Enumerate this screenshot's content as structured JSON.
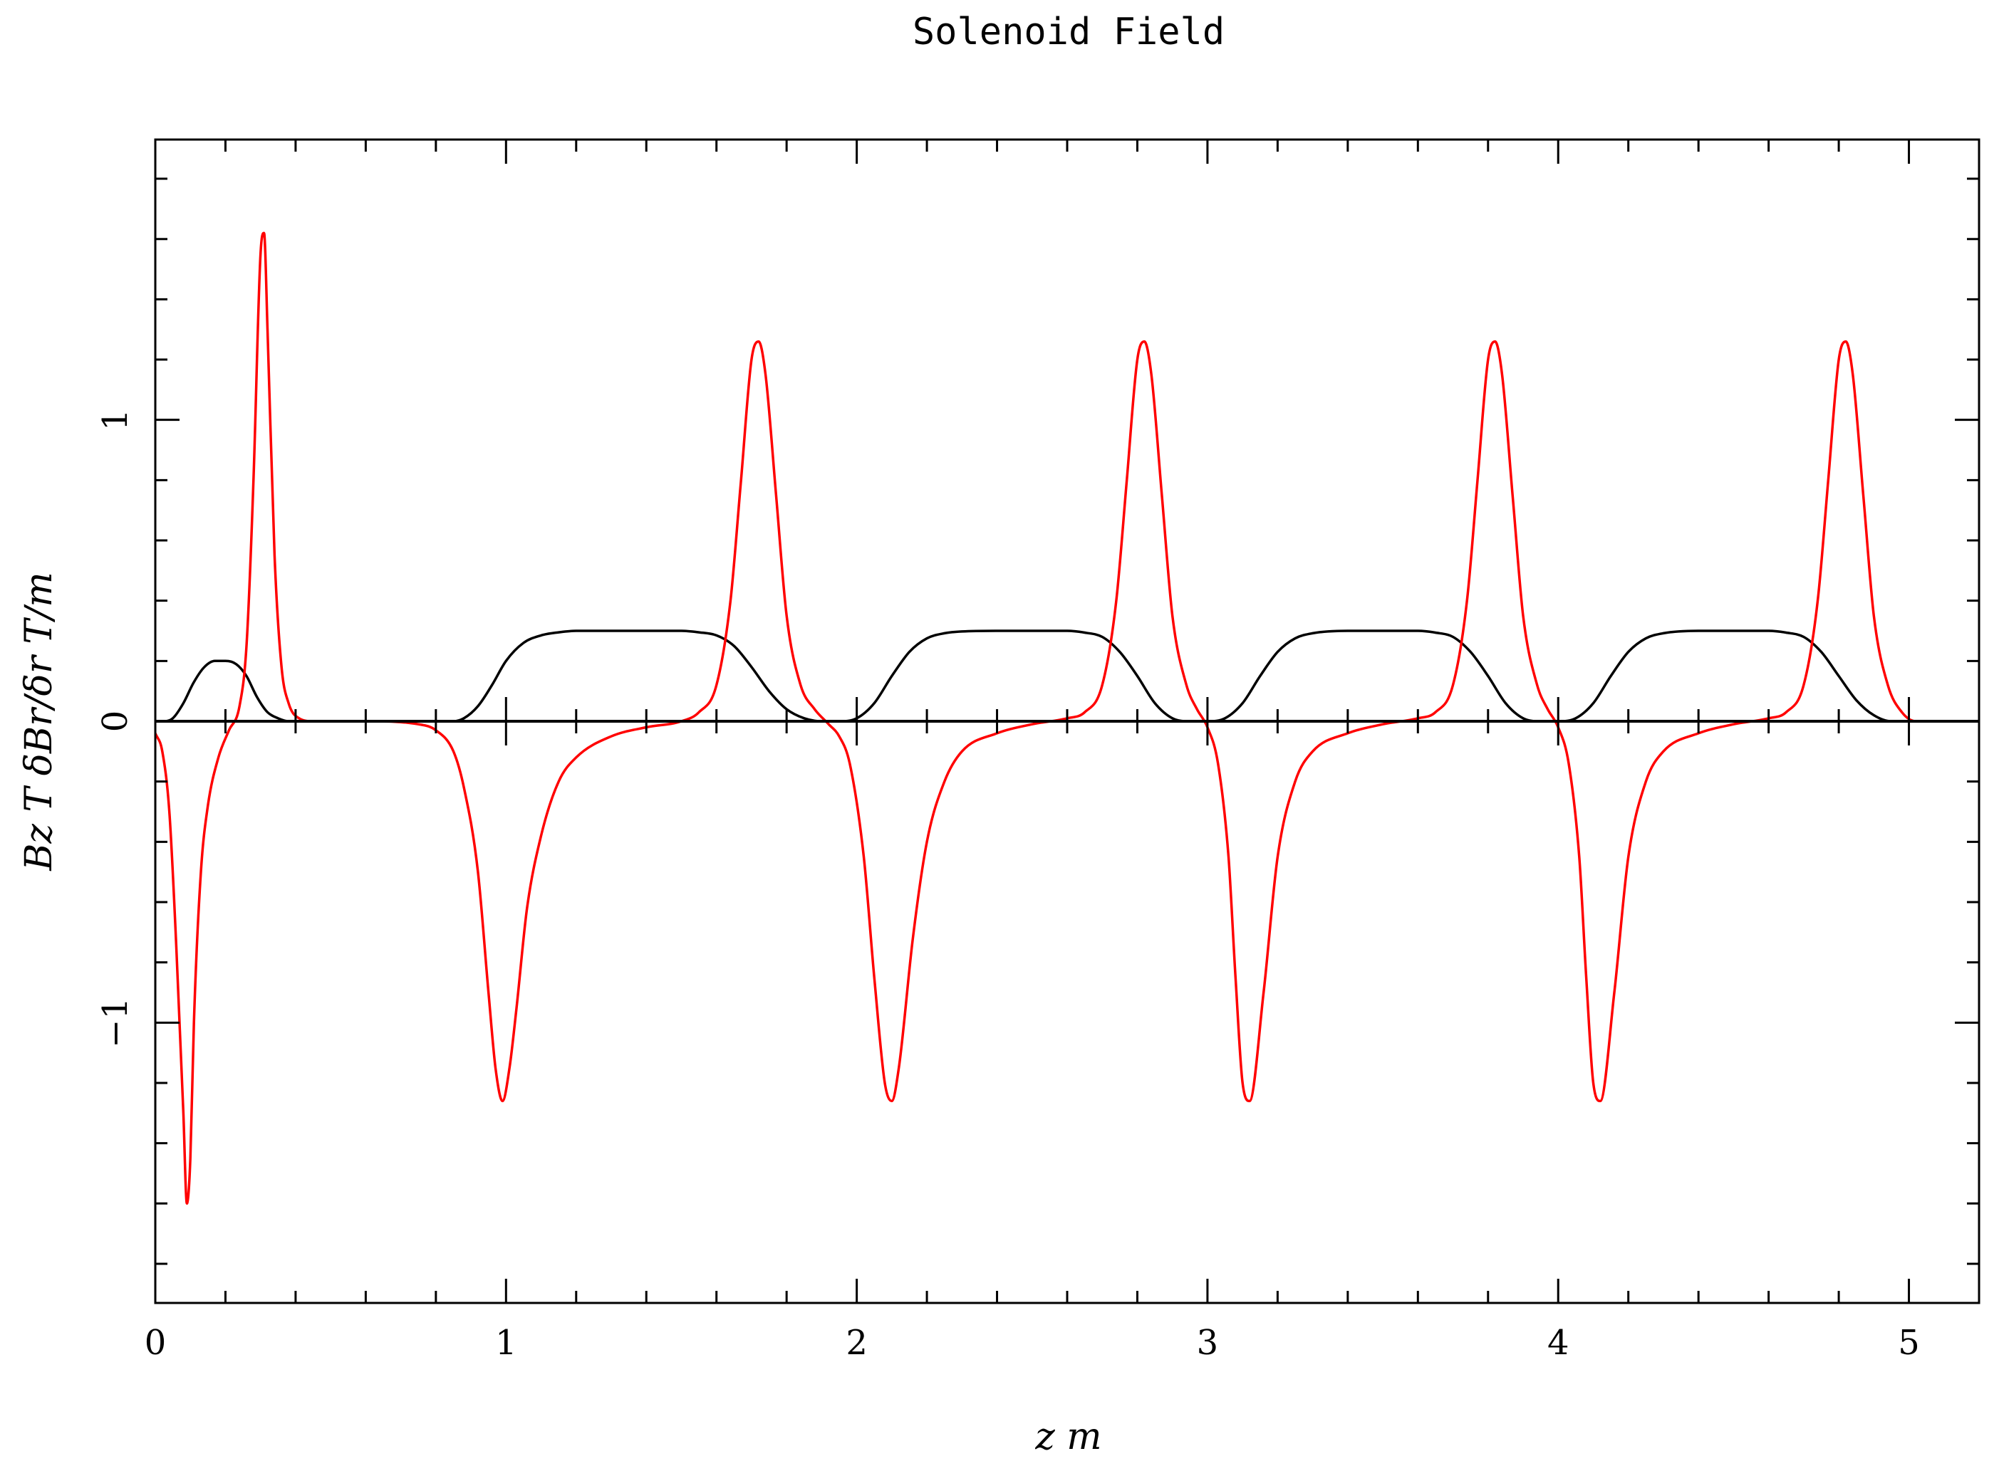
{
  "chart_data": {
    "type": "line",
    "title": "Solenoid Field",
    "xlabel": "z m",
    "ylabel": "Bz T  δBr/δr T/m",
    "xlim": [
      0,
      5.2
    ],
    "ylim": [
      -1.93,
      1.93
    ],
    "grid": false,
    "x_ticks": [
      "0",
      "1",
      "2",
      "3",
      "4",
      "5"
    ],
    "y_ticks": [
      "−1",
      "0",
      "1"
    ],
    "colors": {
      "Bz": "#000000",
      "dBr_dr": "#ff0000",
      "axes": "#000000"
    },
    "series": [
      {
        "color": "#000000",
        "x": [
          0.0,
          0.02,
          0.05,
          0.08,
          0.11,
          0.14,
          0.17,
          0.2,
          0.23,
          0.26,
          0.29,
          0.32,
          0.35,
          0.38,
          0.41,
          0.45,
          0.85,
          0.88,
          0.92,
          0.96,
          1.0,
          1.05,
          1.1,
          1.15,
          1.2,
          1.3,
          1.5,
          1.55,
          1.6,
          1.65,
          1.7,
          1.75,
          1.8,
          1.85,
          1.9,
          1.95,
          2.0,
          2.05,
          2.1,
          2.15,
          2.2,
          2.25,
          2.3,
          2.4,
          2.6,
          2.65,
          2.7,
          2.75,
          2.8,
          2.85,
          2.9,
          2.95,
          3.0,
          3.05,
          3.1,
          3.15,
          3.2,
          3.25,
          3.3,
          3.4,
          3.6,
          3.65,
          3.7,
          3.75,
          3.8,
          3.85,
          3.9,
          3.95,
          4.0,
          4.05,
          4.1,
          4.15,
          4.2,
          4.25,
          4.3,
          4.4,
          4.6,
          4.65,
          4.7,
          4.75,
          4.8,
          4.85,
          4.9,
          4.95,
          5.0,
          5.2
        ],
        "y": [
          0.0,
          0.0,
          0.01,
          0.06,
          0.13,
          0.18,
          0.2,
          0.2,
          0.19,
          0.15,
          0.08,
          0.03,
          0.01,
          0.0,
          0.0,
          0.0,
          0.0,
          0.01,
          0.05,
          0.12,
          0.2,
          0.26,
          0.285,
          0.295,
          0.3,
          0.3,
          0.3,
          0.295,
          0.285,
          0.25,
          0.18,
          0.1,
          0.04,
          0.01,
          0.0,
          0.0,
          0.01,
          0.06,
          0.15,
          0.23,
          0.275,
          0.292,
          0.298,
          0.3,
          0.3,
          0.294,
          0.28,
          0.23,
          0.15,
          0.06,
          0.01,
          0.0,
          0.0,
          0.01,
          0.06,
          0.15,
          0.23,
          0.275,
          0.292,
          0.3,
          0.3,
          0.294,
          0.28,
          0.23,
          0.15,
          0.06,
          0.01,
          0.0,
          0.0,
          0.01,
          0.06,
          0.15,
          0.23,
          0.275,
          0.292,
          0.3,
          0.3,
          0.294,
          0.28,
          0.23,
          0.15,
          0.07,
          0.02,
          0.0,
          0.0,
          0.0
        ]
      },
      {
        "color": "#ff0000",
        "x": [
          0.0,
          0.02,
          0.04,
          0.06,
          0.08,
          0.09,
          0.1,
          0.11,
          0.13,
          0.15,
          0.18,
          0.21,
          0.24,
          0.26,
          0.28,
          0.3,
          0.31,
          0.32,
          0.34,
          0.36,
          0.38,
          0.41,
          0.45,
          0.6,
          0.75,
          0.8,
          0.85,
          0.88,
          0.92,
          0.95,
          0.97,
          0.99,
          1.01,
          1.03,
          1.06,
          1.1,
          1.15,
          1.2,
          1.3,
          1.4,
          1.5,
          1.55,
          1.6,
          1.64,
          1.67,
          1.7,
          1.72,
          1.74,
          1.77,
          1.8,
          1.84,
          1.88,
          1.92,
          1.95,
          1.98,
          2.02,
          2.05,
          2.08,
          2.1,
          2.12,
          2.16,
          2.2,
          2.25,
          2.3,
          2.4,
          2.5,
          2.6,
          2.65,
          2.7,
          2.74,
          2.77,
          2.8,
          2.82,
          2.84,
          2.87,
          2.9,
          2.94,
          2.97,
          3.0,
          3.03,
          3.06,
          3.08,
          3.1,
          3.12,
          3.16,
          3.2,
          3.25,
          3.3,
          3.4,
          3.5,
          3.6,
          3.65,
          3.7,
          3.74,
          3.77,
          3.8,
          3.82,
          3.84,
          3.87,
          3.9,
          3.94,
          3.97,
          4.0,
          4.03,
          4.06,
          4.08,
          4.1,
          4.12,
          4.16,
          4.2,
          4.25,
          4.3,
          4.4,
          4.5,
          4.6,
          4.65,
          4.7,
          4.74,
          4.77,
          4.8,
          4.82,
          4.84,
          4.87,
          4.9,
          4.94,
          4.98,
          5.02,
          5.2
        ],
        "y": [
          -0.04,
          -0.1,
          -0.3,
          -0.75,
          -1.3,
          -1.6,
          -1.45,
          -1.0,
          -0.5,
          -0.28,
          -0.12,
          -0.03,
          0.05,
          0.25,
          0.8,
          1.55,
          1.62,
          1.3,
          0.55,
          0.18,
          0.06,
          0.01,
          0.0,
          0.0,
          -0.01,
          -0.03,
          -0.1,
          -0.22,
          -0.5,
          -0.9,
          -1.15,
          -1.26,
          -1.15,
          -0.95,
          -0.62,
          -0.38,
          -0.2,
          -0.12,
          -0.05,
          -0.02,
          0.0,
          0.03,
          0.12,
          0.4,
          0.8,
          1.2,
          1.26,
          1.15,
          0.75,
          0.35,
          0.12,
          0.04,
          -0.01,
          -0.05,
          -0.14,
          -0.45,
          -0.85,
          -1.2,
          -1.26,
          -1.15,
          -0.72,
          -0.4,
          -0.2,
          -0.1,
          -0.04,
          -0.01,
          0.01,
          0.03,
          0.12,
          0.4,
          0.8,
          1.2,
          1.26,
          1.15,
          0.75,
          0.35,
          0.12,
          0.04,
          -0.02,
          -0.14,
          -0.45,
          -0.85,
          -1.2,
          -1.26,
          -0.9,
          -0.45,
          -0.2,
          -0.1,
          -0.04,
          -0.01,
          0.01,
          0.03,
          0.12,
          0.4,
          0.8,
          1.2,
          1.26,
          1.15,
          0.75,
          0.35,
          0.12,
          0.04,
          -0.02,
          -0.14,
          -0.45,
          -0.85,
          -1.2,
          -1.26,
          -0.9,
          -0.45,
          -0.2,
          -0.1,
          -0.04,
          -0.01,
          0.01,
          0.03,
          0.12,
          0.4,
          0.8,
          1.2,
          1.26,
          1.15,
          0.75,
          0.35,
          0.12,
          0.03,
          0.0,
          0.0
        ]
      }
    ]
  }
}
